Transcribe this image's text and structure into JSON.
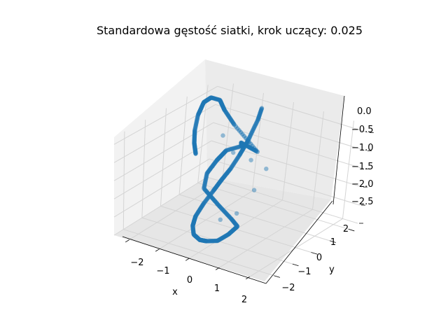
{
  "chart_data": {
    "type": "scatter",
    "projection": "3d",
    "title": "Standardowa gęstość siatki, krok uczący: 0.025",
    "xlabel": "x",
    "ylabel": "y",
    "zlabel": "",
    "x_ticks": [
      "−2",
      "−1",
      "0",
      "1",
      "2"
    ],
    "y_ticks": [
      "−2",
      "−1",
      "0",
      "1",
      "2"
    ],
    "z_ticks": [
      "0.0",
      "−0.5",
      "−1.0",
      "−1.5",
      "−2.0",
      "−2.5"
    ],
    "xlim": [
      -2.5,
      2.5
    ],
    "ylim": [
      -2.5,
      2.5
    ],
    "zlim": [
      -2.5,
      0.2
    ],
    "grid": true,
    "marker_color": "#1f77b4",
    "series": [
      {
        "x": [
          -1.0,
          -0.9,
          -0.72,
          -0.6,
          -0.51,
          -0.46,
          -0.38,
          -0.3,
          -0.18,
          -0.08,
          0.05,
          0.22,
          0.35,
          0.62,
          0.85,
          1.02,
          0.88,
          0.6,
          0.15,
          -0.02,
          -0.1,
          -0.2,
          -0.1,
          -0.5,
          -0.2,
          -1.4,
          -1.95,
          -2.25,
          -2.42,
          -2.45,
          -2.35,
          -2.1,
          -1.9,
          -1.7
        ],
        "y": [
          2.5,
          2.2,
          1.5,
          0.9,
          0.35,
          -0.15,
          -0.7,
          -1.3,
          -1.9,
          -2.2,
          -2.35,
          -2.3,
          -2.15,
          -2.0,
          -1.8,
          -1.6,
          -1.7,
          -1.9,
          -2.0,
          -1.6,
          -1.0,
          -0.4,
          0.2,
          0.8,
          1.2,
          1.8,
          2.1,
          2.3,
          2.1,
          1.8,
          1.4,
          0.9,
          0.6,
          0.4
        ],
        "z": [
          -0.22,
          -0.42,
          -0.72,
          -0.92,
          -1.08,
          -1.2,
          -1.32,
          -1.45,
          -1.58,
          -1.72,
          -1.88,
          -2.0,
          -2.05,
          -2.02,
          -1.85,
          -1.65,
          -1.45,
          -1.1,
          -0.7,
          -0.45,
          -0.3,
          -0.25,
          -0.3,
          -0.5,
          -0.8,
          -0.55,
          -0.38,
          -0.25,
          -0.16,
          -0.2,
          -0.4,
          -0.6,
          -0.8,
          -1.0
        ]
      }
    ]
  }
}
